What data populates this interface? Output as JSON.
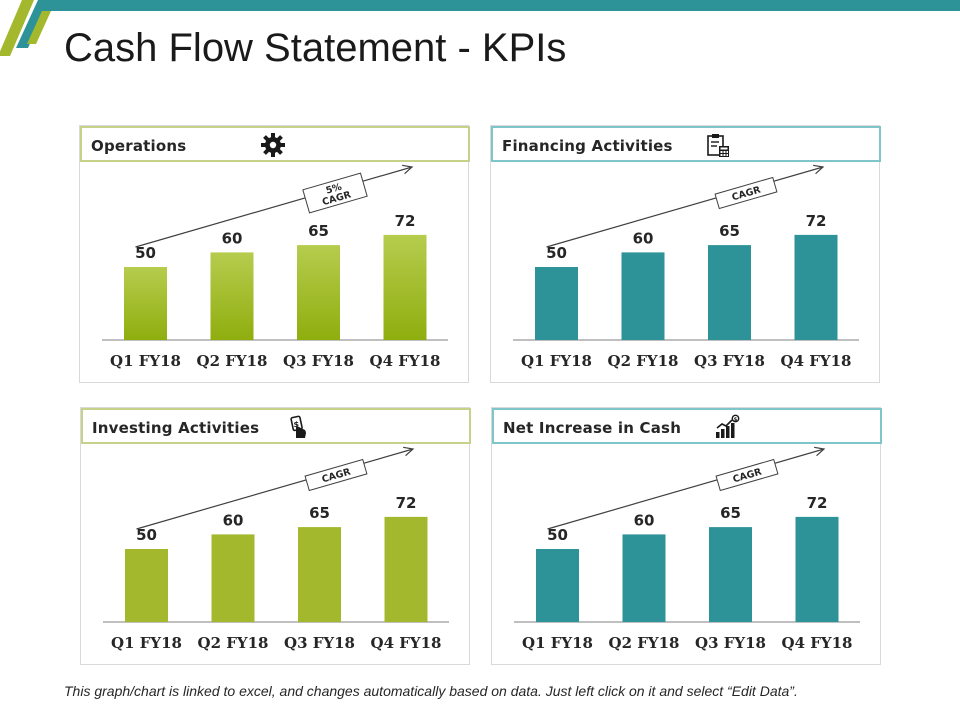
{
  "title": "Cash Flow Statement - KPIs",
  "footer": "This graph/chart is linked to excel, and changes automatically based on data. Just left click on it and select “Edit Data”.",
  "colors": {
    "accent_teal": "#2e9398",
    "accent_green": "#a3b82c",
    "green_gradient_top": "#b6cc4e",
    "green_gradient_bottom": "#8fae0e"
  },
  "panels": [
    {
      "title": "Operations",
      "icon": "gear-icon",
      "cagr_label": [
        "5%",
        "CAGR"
      ]
    },
    {
      "title": "Financing  Activities",
      "icon": "clipboard-calculator-icon",
      "cagr_label": [
        "CAGR"
      ]
    },
    {
      "title": "Investing  Activities",
      "icon": "hand-money-icon",
      "cagr_label": [
        "CAGR"
      ]
    },
    {
      "title": "Net Increase in Cash",
      "icon": "growth-chart-icon",
      "cagr_label": [
        "CAGR"
      ]
    }
  ],
  "chart_data": [
    {
      "type": "bar",
      "categories": [
        "Q1 FY18",
        "Q2 FY18",
        "Q3 FY18",
        "Q4 FY18"
      ],
      "values": [
        50,
        60,
        65,
        72
      ],
      "color": "#a3b82c",
      "gradient": true
    },
    {
      "type": "bar",
      "categories": [
        "Q1 FY18",
        "Q2 FY18",
        "Q3 FY18",
        "Q4 FY18"
      ],
      "values": [
        50,
        60,
        65,
        72
      ],
      "color": "#2e9398"
    },
    {
      "type": "bar",
      "categories": [
        "Q1 FY18",
        "Q2 FY18",
        "Q3 FY18",
        "Q4 FY18"
      ],
      "values": [
        50,
        60,
        65,
        72
      ],
      "color": "#a3b82c"
    },
    {
      "type": "bar",
      "categories": [
        "Q1 FY18",
        "Q2 FY18",
        "Q3 FY18",
        "Q4 FY18"
      ],
      "values": [
        50,
        60,
        65,
        72
      ],
      "color": "#2e9398"
    }
  ]
}
